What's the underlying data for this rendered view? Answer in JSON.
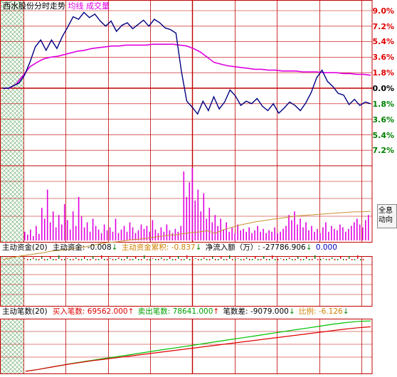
{
  "header": {
    "stock_name": "西水股份",
    "view_name": "分时走势",
    "avg_label": "均线",
    "vol_label": "成交量"
  },
  "price_axis": {
    "up": [
      "9.0%",
      "7.2%",
      "5.4%",
      "3.6%",
      "1.8%"
    ],
    "zero": "0.0%",
    "down": [
      "1.8%",
      "3.6%",
      "5.4%",
      "7.2%"
    ]
  },
  "side_button": {
    "line1": "全息",
    "line2": "动向"
  },
  "funds_panel": {
    "title": "主动资金(20)",
    "items": [
      {
        "label": "主动资金:",
        "value": "-0.008",
        "arrow": "↓"
      },
      {
        "label": "主动资金累积:",
        "value": "-0.837",
        "arrow": "↓"
      },
      {
        "label": "净流入额（万）:",
        "value": "-27786.906",
        "arrow": "↓"
      },
      {
        "label": "",
        "value": "0.000",
        "arrow": ""
      }
    ]
  },
  "trades_panel": {
    "title": "主动笔数(20)",
    "items": [
      {
        "label": "买入笔数:",
        "value": "69562.000",
        "arrow": "↑"
      },
      {
        "label": "卖出笔数:",
        "value": "78641.000",
        "arrow": "↑"
      },
      {
        "label": "笔数差:",
        "value": "-9079.000",
        "arrow": "↓"
      },
      {
        "label": "比例:",
        "value": "-6.126",
        "arrow": "↓"
      }
    ]
  },
  "colors": {
    "price_line": "#000080",
    "avg_line": "#e000e0",
    "volume_bars": "#e000e0",
    "grid": "#c00000",
    "buy_line": "#00c000",
    "sell_line": "#e00000",
    "funds_cum_line": "#c89030"
  },
  "chart_data": {
    "type": "line",
    "price_pct": [
      0.0,
      0.0,
      0.3,
      0.6,
      1.5,
      3.0,
      4.8,
      5.6,
      4.4,
      5.6,
      4.6,
      6.0,
      7.1,
      8.3,
      8.0,
      8.8,
      8.2,
      8.6,
      7.8,
      7.2,
      7.8,
      6.6,
      7.3,
      7.6,
      6.9,
      7.4,
      7.9,
      7.2,
      8.0,
      7.6,
      7.0,
      6.8,
      6.4,
      2.0,
      -1.5,
      -2.2,
      -3.0,
      -1.5,
      -2.6,
      -1.0,
      -2.4,
      -1.6,
      -0.2,
      -0.9,
      -2.0,
      -1.5,
      -1.8,
      -1.2,
      -2.1,
      -2.6,
      -1.8,
      -2.9,
      -2.3,
      -1.6,
      -2.0,
      -2.6,
      -1.7,
      -0.5,
      1.2,
      2.1,
      0.8,
      0.2,
      -0.6,
      -0.8,
      -1.9,
      -1.3,
      -2.0,
      -1.6,
      -1.8
    ],
    "avg_pct": [
      0.0,
      0.0,
      0.5,
      1.5,
      2.5,
      3.0,
      3.4,
      3.6,
      3.7,
      3.9,
      4.1,
      4.3,
      4.4,
      4.6,
      4.7,
      4.8,
      4.9,
      4.9,
      5.0,
      5.0,
      5.0,
      5.0,
      5.1,
      5.1,
      5.1,
      5.1,
      5.0,
      4.9,
      4.6,
      4.2,
      3.6,
      3.0,
      2.8,
      2.6,
      2.5,
      2.4,
      2.3,
      2.2,
      2.2,
      2.1,
      2.1,
      2.0,
      2.0,
      2.0,
      1.9,
      1.9,
      1.9,
      1.8,
      1.8,
      1.8,
      1.7,
      1.7,
      1.6,
      1.6,
      1.5
    ],
    "volume": [
      12,
      8,
      15,
      6,
      20,
      9,
      45,
      30,
      70,
      25,
      40,
      18,
      35,
      22,
      50,
      28,
      15,
      40,
      20,
      60,
      33,
      18,
      25,
      12,
      30,
      20,
      15,
      10,
      22,
      14,
      18,
      12,
      30,
      10,
      15,
      20,
      12,
      25,
      18,
      10,
      14,
      22,
      16,
      20,
      12,
      28,
      15,
      10,
      18,
      12,
      22,
      14,
      10,
      16,
      12,
      20,
      95,
      60,
      80,
      100,
      55,
      70,
      40,
      65,
      30,
      45,
      25,
      35,
      20,
      30,
      15,
      25,
      12,
      18,
      10,
      22,
      14,
      16,
      12,
      18,
      10,
      14,
      20,
      12,
      16,
      10,
      14,
      12,
      18,
      10,
      12,
      16,
      20,
      35,
      28,
      40,
      22,
      30,
      18,
      25,
      14,
      20,
      12,
      16,
      10,
      18,
      25,
      12,
      20,
      16,
      14,
      22,
      18,
      12,
      16,
      20,
      25,
      30,
      22,
      18,
      28,
      35
    ],
    "funds_cum": [
      0.0,
      -0.03,
      -0.06,
      -0.08,
      -0.1,
      -0.12,
      -0.15,
      -0.16,
      -0.18,
      -0.2,
      -0.22,
      -0.25,
      -0.28,
      -0.3,
      -0.31,
      -0.33,
      -0.35,
      -0.36,
      -0.38,
      -0.4,
      -0.42,
      -0.43,
      -0.45,
      -0.47,
      -0.48,
      -0.5,
      -0.46,
      -0.52,
      -0.56,
      -0.6,
      -0.63,
      -0.66,
      -0.68,
      -0.7,
      -0.72,
      -0.74,
      -0.76,
      -0.77,
      -0.78,
      -0.79,
      -0.8,
      -0.81,
      -0.82,
      -0.83,
      -0.83,
      -0.84
    ],
    "buy_trades": [
      0,
      3000,
      6500,
      10000,
      13000,
      16000,
      18500,
      21000,
      23500,
      26000,
      28500,
      31000,
      33500,
      36000,
      38500,
      41000,
      43500,
      46000,
      48500,
      51000,
      53500,
      56000,
      58500,
      61000,
      63500,
      66000,
      68000,
      69562
    ],
    "sell_trades": [
      0,
      3000,
      6500,
      10000,
      13500,
      16500,
      19500,
      22500,
      25500,
      28500,
      31500,
      34500,
      37500,
      40500,
      43500,
      46500,
      49500,
      52500,
      55500,
      58500,
      61500,
      64500,
      67500,
      70500,
      73500,
      76000,
      78000,
      78641
    ]
  }
}
